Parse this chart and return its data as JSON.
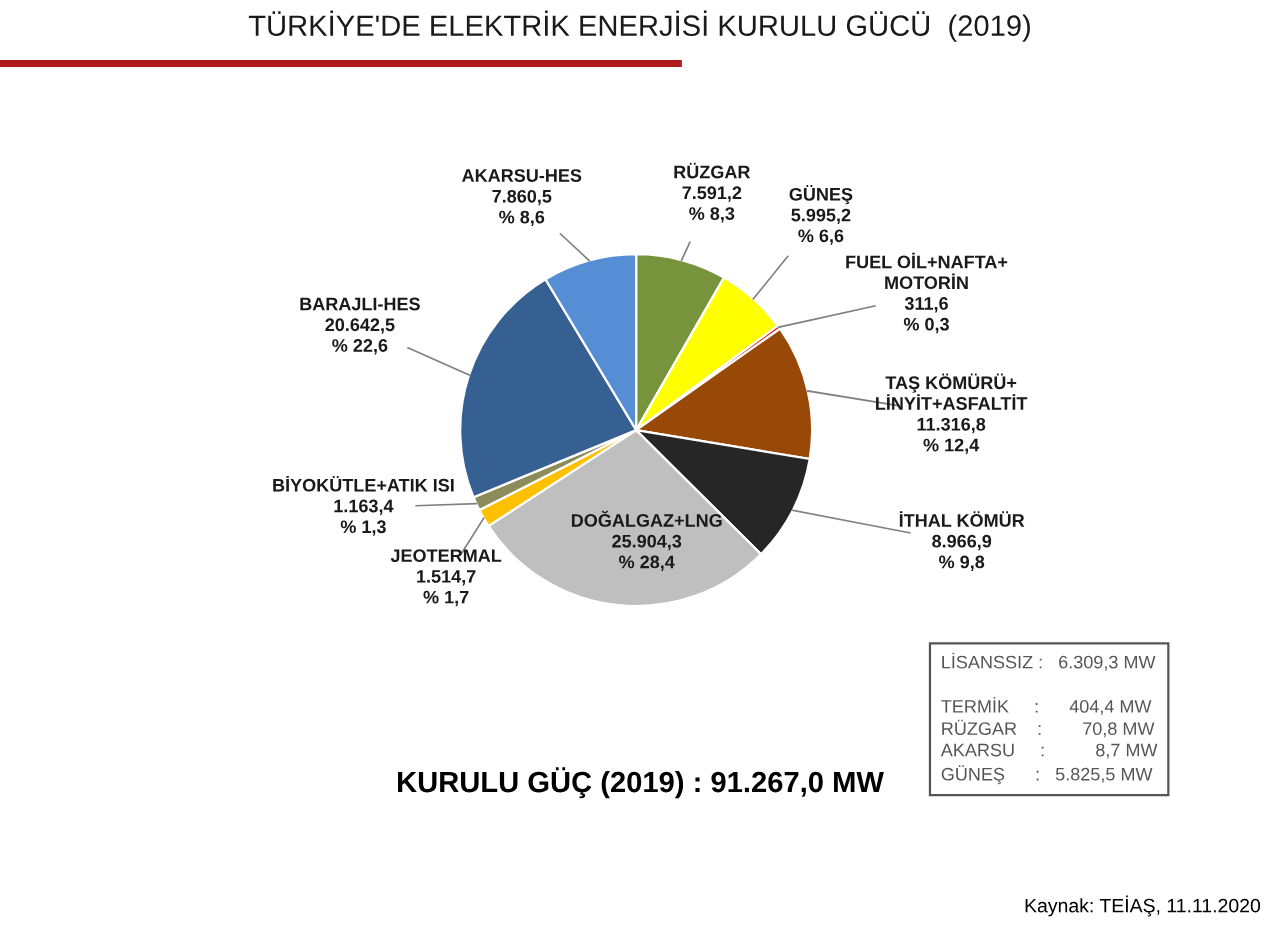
{
  "chart_data": {
    "type": "pie",
    "title": "TÜRKİYE'DE ELEKTRİK ENERJİSİ KURULU GÜCÜ  (2019)",
    "categories": [
      "RÜZGAR",
      "GÜNEŞ",
      "FUEL OİL+NAFTA+\nMOTORİN",
      "TAŞ KÖMÜRÜ+\nLİNYİT+ASFALTİT",
      "İTHAL KÖMÜR",
      "DOĞALGAZ+LNG",
      "JEOTERMAL",
      "BİYOKÜTLE+ATIK ISI",
      "BARAJLI-HES",
      "AKARSU-HES"
    ],
    "values": [
      7591.2,
      5995.2,
      311.6,
      11316.8,
      8966.9,
      25904.3,
      1514.7,
      1163.4,
      20642.5,
      7860.5
    ],
    "value_labels": [
      "7.591,2\n% 8,3",
      "5.995,2\n% 6,6",
      "311,6\n% 0,3",
      "11.316,8\n% 12,4",
      "8.966,9\n% 9,8",
      "25.904,3\n% 28,4",
      "1.514,7\n% 1,7",
      "1.163,4\n% 1,3",
      "20.642,5\n% 22,6",
      "7.860,5\n% 8,6"
    ],
    "colors": [
      "#77933c",
      "#ffff00",
      "#e0261c",
      "#984807",
      "#262626",
      "#bfbfbf",
      "#ffc000",
      "#8c8c5a",
      "#376092",
      "#558ed5"
    ],
    "annotations": [
      "KURULU GÜÇ (2019) : 91.267,0 MW",
      "LİSANSSIZ :   6.309,3 MW\n\nTERMİK     :      404,4 MW\nRÜZGAR    :        70,8 MW\nAKARSU     :          8,7 MW\nGÜNEŞ      :   5.825,5 MW",
      "Kaynak: TEİAŞ, 11.11.2020"
    ]
  }
}
